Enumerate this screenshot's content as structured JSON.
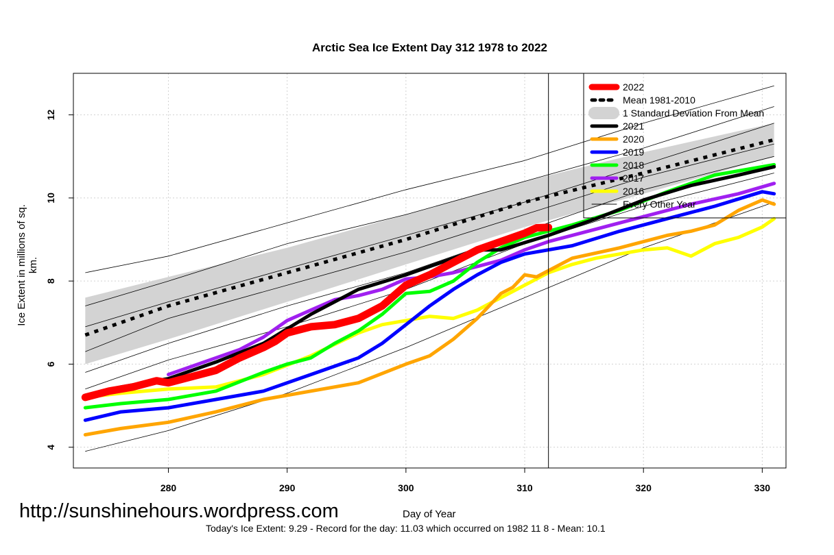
{
  "chart_data": {
    "type": "line",
    "title": "Arctic Sea Ice Extent Day 312 1978 to 2022",
    "xlabel": "Day of Year",
    "ylabel": "Ice Extent in millions of sq. km.",
    "xlim": [
      272,
      332
    ],
    "ylim": [
      3.5,
      13
    ],
    "x_ticks": [
      280,
      290,
      300,
      310,
      320,
      330
    ],
    "y_ticks": [
      4,
      6,
      8,
      10,
      12
    ],
    "grid": true,
    "legend_position": "top-right",
    "current_day": 312,
    "legend": [
      {
        "label": "2022",
        "color": "#ff0000",
        "style": "thick"
      },
      {
        "label": "Mean 1981-2010",
        "color": "#000000",
        "style": "dotted"
      },
      {
        "label": "1 Standard Deviation From Mean",
        "color": "#d3d3d3",
        "style": "band"
      },
      {
        "label": "2021",
        "color": "#000000",
        "style": "solid"
      },
      {
        "label": "2020",
        "color": "#ffa500",
        "style": "solid"
      },
      {
        "label": "2019",
        "color": "#0000ff",
        "style": "solid"
      },
      {
        "label": "2018",
        "color": "#00ff00",
        "style": "solid"
      },
      {
        "label": "2017",
        "color": "#a020f0",
        "style": "solid"
      },
      {
        "label": "2016",
        "color": "#ffff00",
        "style": "solid"
      },
      {
        "label": "Every Other Year",
        "color": "#000000",
        "style": "thin"
      }
    ],
    "mean": {
      "x": [
        273,
        280,
        290,
        300,
        310,
        320,
        331
      ],
      "y": [
        6.7,
        7.4,
        8.2,
        9.0,
        9.9,
        10.6,
        11.4
      ]
    },
    "std_band": {
      "x": [
        273,
        280,
        290,
        300,
        310,
        320,
        331
      ],
      "lower": [
        6.0,
        6.6,
        7.5,
        8.4,
        9.3,
        10.1,
        11.0
      ],
      "upper": [
        7.6,
        8.1,
        8.8,
        9.6,
        10.4,
        11.1,
        11.8
      ]
    },
    "series": [
      {
        "name": "2022",
        "color": "#ff0000",
        "width": 11,
        "x": [
          273,
          275,
          277,
          279,
          280,
          282,
          284,
          286,
          288,
          289,
          290,
          292,
          294,
          296,
          298,
          300,
          302,
          304,
          306,
          308,
          310,
          311,
          312
        ],
        "y": [
          5.2,
          5.35,
          5.45,
          5.6,
          5.55,
          5.7,
          5.85,
          6.15,
          6.4,
          6.55,
          6.75,
          6.9,
          6.95,
          7.1,
          7.4,
          7.9,
          8.15,
          8.45,
          8.75,
          8.95,
          9.15,
          9.28,
          9.29
        ]
      },
      {
        "name": "2021",
        "color": "#000000",
        "width": 5,
        "x": [
          273,
          276,
          280,
          284,
          288,
          292,
          296,
          300,
          304,
          306,
          308,
          312,
          316,
          320,
          324,
          328,
          331
        ],
        "y": [
          5.25,
          5.45,
          5.65,
          6.05,
          6.5,
          7.2,
          7.8,
          8.15,
          8.55,
          8.75,
          8.75,
          9.1,
          9.5,
          9.95,
          10.3,
          10.55,
          10.75
        ]
      },
      {
        "name": "2020",
        "color": "#ffa500",
        "width": 5,
        "x": [
          273,
          276,
          280,
          284,
          288,
          292,
          296,
          300,
          302,
          304,
          306,
          308,
          309,
          310,
          311,
          314,
          318,
          322,
          324,
          326,
          328,
          330,
          331
        ],
        "y": [
          4.3,
          4.45,
          4.6,
          4.85,
          5.15,
          5.35,
          5.55,
          6.0,
          6.2,
          6.6,
          7.1,
          7.7,
          7.85,
          8.15,
          8.1,
          8.55,
          8.8,
          9.1,
          9.2,
          9.35,
          9.7,
          9.95,
          9.85
        ]
      },
      {
        "name": "2019",
        "color": "#0000ff",
        "width": 5,
        "x": [
          273,
          276,
          280,
          284,
          288,
          292,
          296,
          298,
          300,
          302,
          304,
          306,
          308,
          310,
          314,
          318,
          322,
          326,
          330,
          331
        ],
        "y": [
          4.65,
          4.85,
          4.95,
          5.15,
          5.35,
          5.75,
          6.15,
          6.5,
          6.95,
          7.4,
          7.8,
          8.15,
          8.45,
          8.65,
          8.85,
          9.2,
          9.5,
          9.8,
          10.15,
          10.1
        ]
      },
      {
        "name": "2018",
        "color": "#00ff00",
        "width": 5,
        "x": [
          273,
          276,
          280,
          284,
          288,
          290,
          292,
          294,
          296,
          298,
          300,
          302,
          304,
          306,
          308,
          310,
          314,
          318,
          322,
          326,
          331
        ],
        "y": [
          4.95,
          5.05,
          5.15,
          5.35,
          5.8,
          6.0,
          6.15,
          6.5,
          6.8,
          7.2,
          7.7,
          7.75,
          8.0,
          8.45,
          8.8,
          9.05,
          9.35,
          9.7,
          10.15,
          10.55,
          10.8
        ]
      },
      {
        "name": "2017",
        "color": "#a020f0",
        "width": 5,
        "x": [
          280,
          282,
          284,
          286,
          288,
          290,
          292,
          294,
          296,
          298,
          300,
          302,
          304,
          306,
          308,
          310,
          312,
          316,
          320,
          324,
          328,
          331
        ],
        "y": [
          5.75,
          5.95,
          6.15,
          6.35,
          6.65,
          7.05,
          7.3,
          7.55,
          7.65,
          7.8,
          8.05,
          8.1,
          8.2,
          8.35,
          8.5,
          8.75,
          8.95,
          9.25,
          9.55,
          9.85,
          10.1,
          10.35
        ]
      },
      {
        "name": "2016",
        "color": "#ffff00",
        "width": 5,
        "x": [
          273,
          276,
          280,
          284,
          288,
          292,
          296,
          298,
          300,
          302,
          304,
          306,
          308,
          310,
          312,
          314,
          316,
          318,
          320,
          322,
          324,
          326,
          328,
          330,
          331
        ],
        "y": [
          5.2,
          5.3,
          5.4,
          5.45,
          5.75,
          6.2,
          6.75,
          6.95,
          7.05,
          7.15,
          7.1,
          7.3,
          7.6,
          7.9,
          8.2,
          8.4,
          8.55,
          8.65,
          8.75,
          8.8,
          8.6,
          8.9,
          9.05,
          9.3,
          9.5
        ]
      }
    ],
    "other_years_summary": [
      {
        "x": [
          273,
          280,
          290,
          300,
          310,
          320,
          331
        ],
        "y": [
          8.2,
          8.6,
          9.4,
          10.2,
          10.9,
          11.8,
          12.7
        ]
      },
      {
        "x": [
          273,
          280,
          290,
          300,
          310,
          320,
          331
        ],
        "y": [
          7.4,
          8.0,
          8.9,
          9.6,
          10.4,
          11.2,
          12.2
        ]
      },
      {
        "x": [
          273,
          280,
          290,
          300,
          310,
          320,
          331
        ],
        "y": [
          6.9,
          7.5,
          8.3,
          9.1,
          9.9,
          10.8,
          11.8
        ]
      },
      {
        "x": [
          273,
          280,
          290,
          300,
          310,
          320,
          331
        ],
        "y": [
          6.3,
          7.1,
          7.9,
          8.7,
          9.6,
          10.5,
          11.3
        ]
      },
      {
        "x": [
          273,
          280,
          290,
          300,
          310,
          320,
          331
        ],
        "y": [
          5.8,
          6.5,
          7.4,
          8.2,
          9.2,
          10.2,
          11.0
        ]
      },
      {
        "x": [
          273,
          280,
          290,
          300,
          310,
          320,
          331
        ],
        "y": [
          5.4,
          6.1,
          6.9,
          7.8,
          8.9,
          9.8,
          10.6
        ]
      },
      {
        "x": [
          273,
          280,
          290,
          300,
          310,
          320,
          331
        ],
        "y": [
          3.9,
          4.4,
          5.3,
          6.4,
          7.6,
          8.8,
          9.9
        ]
      }
    ],
    "footer": "Today's Ice Extent: 9.29  - Record for the day: 11.03 which occurred on 1982 11 8  - Mean: 10.1"
  },
  "watermark": "http://sunshinehours.wordpress.com"
}
